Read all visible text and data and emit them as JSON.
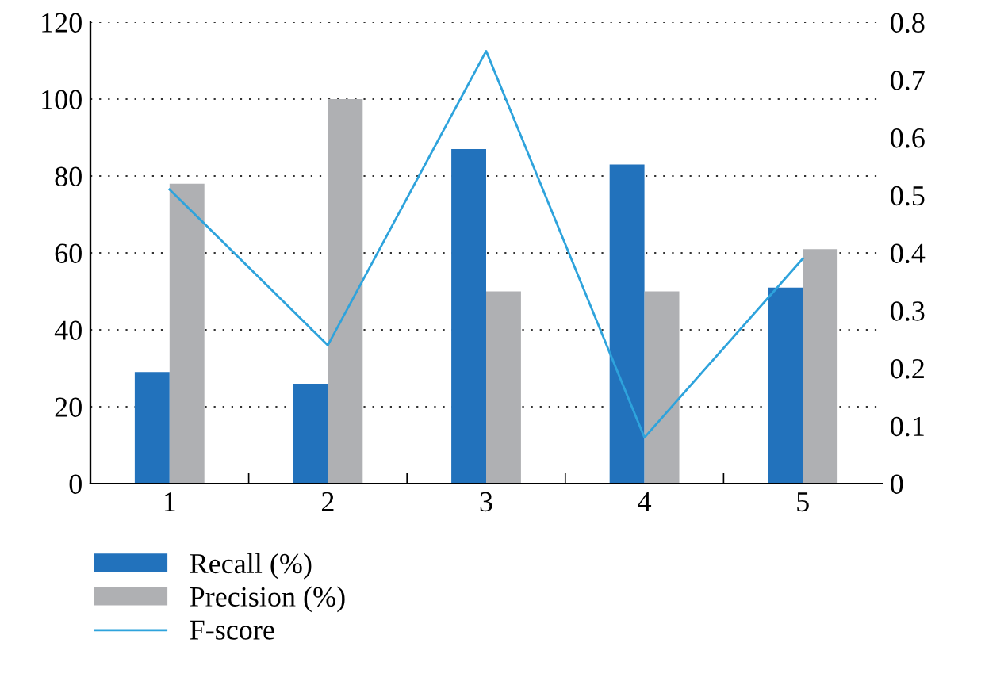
{
  "chart_data": {
    "type": "bar",
    "categories": [
      "1",
      "2",
      "3",
      "4",
      "5"
    ],
    "series": [
      {
        "name": "Recall (%)",
        "color": "#2272bc",
        "values": [
          29,
          26,
          87,
          83,
          51
        ]
      },
      {
        "name": "Precision (%)",
        "color": "#afb0b3",
        "values": [
          78,
          100,
          50,
          50,
          61
        ]
      },
      {
        "name": "F-score",
        "type": "line",
        "axis": "y2",
        "color": "#2ea3dc",
        "values": [
          0.51,
          0.24,
          0.75,
          0.08,
          0.39
        ]
      }
    ],
    "ylim": [
      0,
      120
    ],
    "yticks": [
      0,
      20,
      40,
      60,
      80,
      100,
      120
    ],
    "y2lim": [
      0,
      0.8
    ],
    "y2ticks": [
      0,
      0.1,
      0.2,
      0.3,
      0.4,
      0.5,
      0.6,
      0.7,
      0.8
    ],
    "grid": true,
    "legend": "bottom",
    "line_style": "solid",
    "marker": "none"
  }
}
